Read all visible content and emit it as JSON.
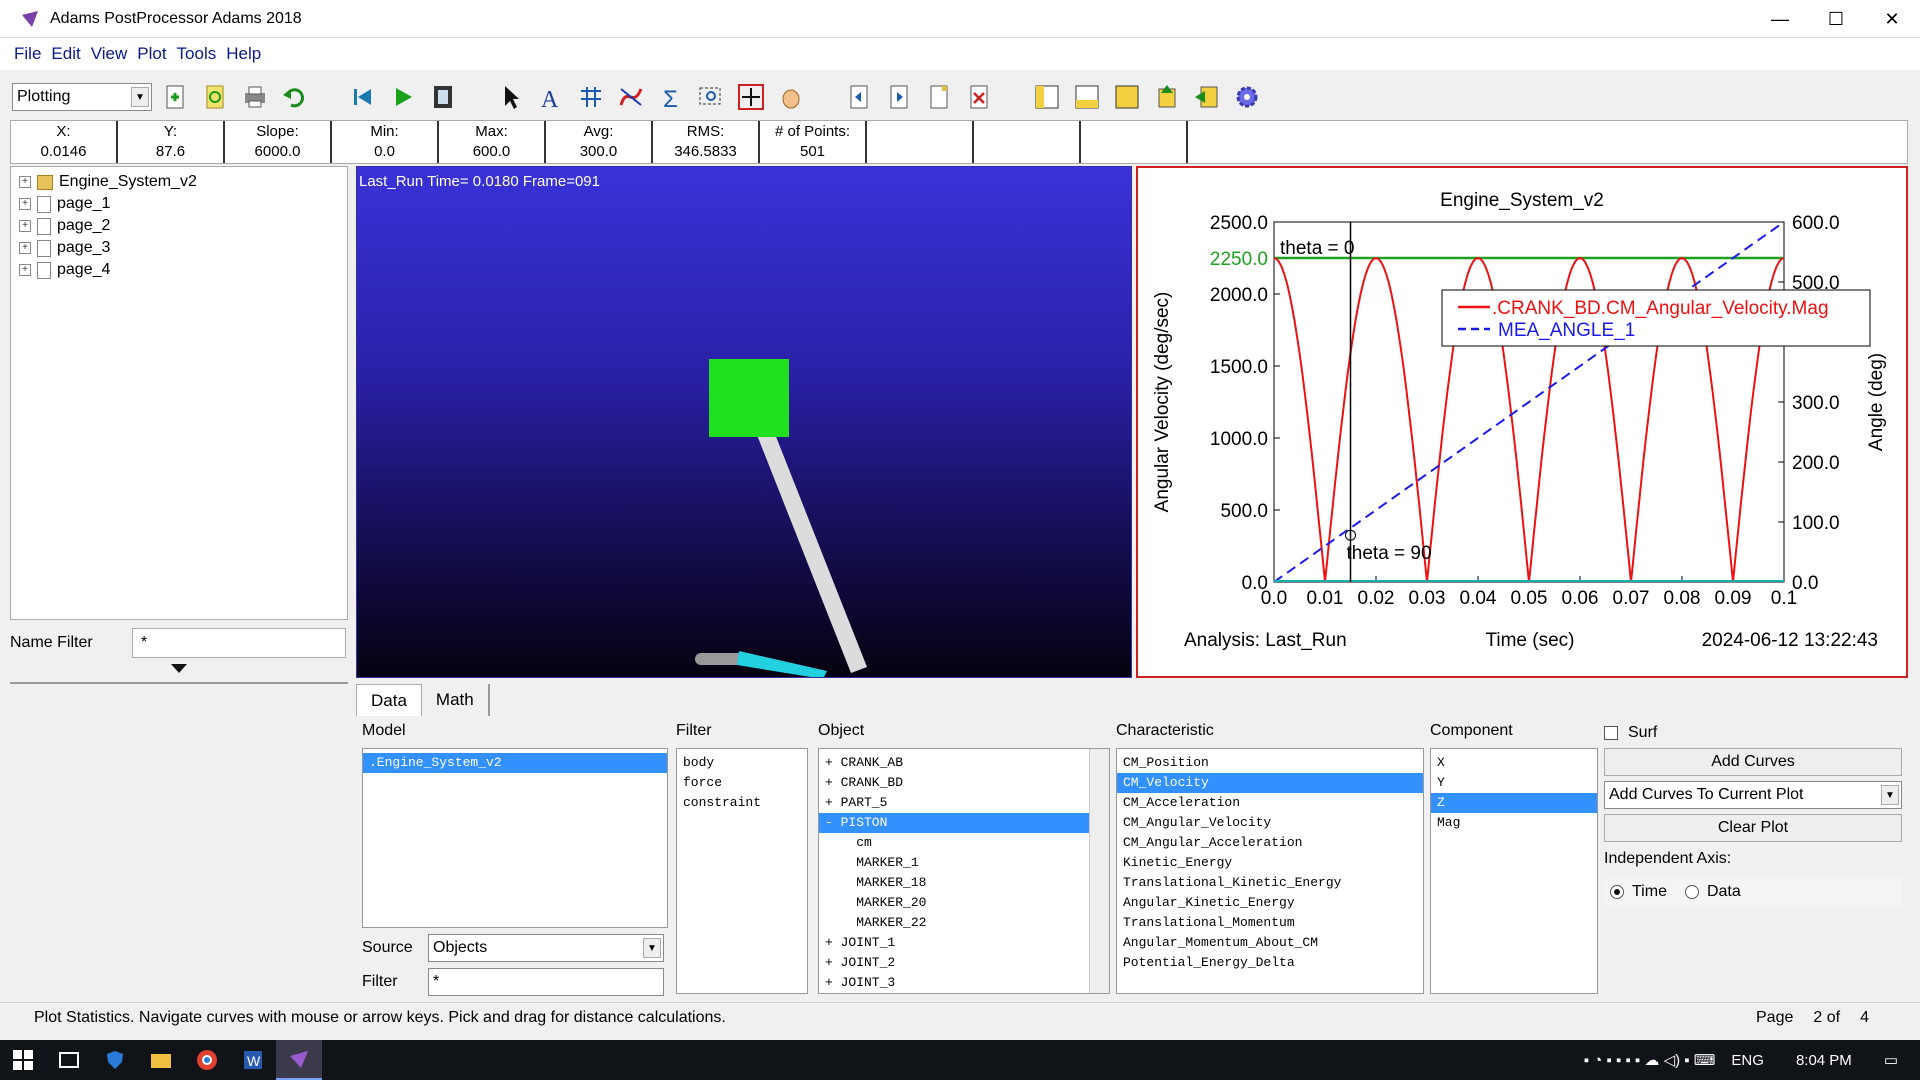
{
  "window": {
    "title": "Adams PostProcessor Adams 2018",
    "minimize": "—",
    "maximize": "☐",
    "close": "✕"
  },
  "menu": [
    "File",
    "Edit",
    "View",
    "Plot",
    "Tools",
    "Help"
  ],
  "toolbar": {
    "mode": "Plotting"
  },
  "stats": [
    {
      "label": "X:",
      "value": "0.0146"
    },
    {
      "label": "Y:",
      "value": "87.6"
    },
    {
      "label": "Slope:",
      "value": "6000.0"
    },
    {
      "label": "Min:",
      "value": "0.0"
    },
    {
      "label": "Max:",
      "value": "600.0"
    },
    {
      "label": "Avg:",
      "value": "300.0"
    },
    {
      "label": "RMS:",
      "value": "346.5833"
    },
    {
      "label": "# of Points:",
      "value": "501"
    }
  ],
  "tree": [
    "Engine_System_v2",
    "page_1",
    "page_2",
    "page_3",
    "page_4"
  ],
  "name_filter": {
    "label": "Name Filter",
    "value": "*"
  },
  "viewport": {
    "info": "Last_Run   Time=  0.0180  Frame=091"
  },
  "plot": {
    "title": "Engine_System_v2",
    "footer_left": "Analysis:  Last_Run",
    "footer_center": "Time (sec)",
    "footer_right": "2024-06-12 13:22:43",
    "annotations": {
      "theta0": "theta = 0",
      "theta90": "theta = 90",
      "hline": "2250.0"
    },
    "colors": {
      "series1": "#ee1111",
      "series2": "#1a1aee",
      "hline": "#20a020"
    }
  },
  "chart_data": {
    "type": "line",
    "title": "Engine_System_v2",
    "xlabel": "Time (sec)",
    "ylabel": "Angular Velocity (deg/sec)",
    "y2label": "Angle (deg)",
    "xlim": [
      0.0,
      0.1
    ],
    "ylim": [
      0.0,
      2500.0
    ],
    "y2lim": [
      0.0,
      600.0
    ],
    "x_ticks": [
      "0.0",
      "0.01",
      "0.02",
      "0.03",
      "0.04",
      "0.05",
      "0.06",
      "0.07",
      "0.08",
      "0.09",
      "0.1"
    ],
    "y_ticks": [
      "0.0",
      "500.0",
      "1000.0",
      "1500.0",
      "2000.0",
      "2500.0"
    ],
    "y2_ticks": [
      "0.0",
      "100.0",
      "200.0",
      "300.0",
      "500.0",
      "600.0"
    ],
    "legend_position": "top-right",
    "series": [
      {
        "name": ".CRANK_BD.CM_Angular_Velocity.Mag",
        "axis": "left",
        "x": [
          0.0,
          0.005,
          0.01,
          0.015,
          0.02,
          0.025,
          0.03,
          0.035,
          0.04,
          0.045,
          0.05,
          0.055,
          0.06,
          0.065,
          0.07,
          0.075,
          0.08,
          0.085,
          0.09,
          0.095,
          0.1
        ],
        "y": [
          2250,
          1591,
          0,
          1591,
          2250,
          1591,
          0,
          1591,
          2250,
          1591,
          0,
          1591,
          2250,
          1591,
          0,
          1591,
          2250,
          1591,
          0,
          1591,
          2250
        ]
      },
      {
        "name": "MEA_ANGLE_1",
        "axis": "right",
        "x": [
          0.0,
          0.1
        ],
        "y": [
          0.0,
          600.0
        ]
      }
    ]
  },
  "tabs": [
    "Data",
    "Math"
  ],
  "columns": {
    "model": {
      "label": "Model",
      "items": [
        ".Engine_System_v2"
      ]
    },
    "filter": {
      "label": "Filter",
      "items": [
        "body",
        "force",
        "constraint"
      ]
    },
    "object": {
      "label": "Object",
      "items": [
        "+ CRANK_AB",
        "+ CRANK_BD",
        "+ PART_5",
        "- PISTON",
        "    cm",
        "    MARKER_1",
        "    MARKER_18",
        "    MARKER_20",
        "    MARKER_22",
        "+ JOINT_1",
        "+ JOINT_2",
        "+ JOINT_3"
      ]
    },
    "characteristic": {
      "label": "Characteristic",
      "items": [
        "CM_Position",
        "CM_Velocity",
        "CM_Acceleration",
        "CM_Angular_Velocity",
        "CM_Angular_Acceleration",
        "Kinetic_Energy",
        "Translational_Kinetic_Energy",
        "Angular_Kinetic_Energy",
        "Translational_Momentum",
        "Angular_Momentum_About_CM",
        "Potential_Energy_Delta"
      ]
    },
    "component": {
      "label": "Component",
      "items": [
        "X",
        "Y",
        "Z",
        "Mag"
      ]
    }
  },
  "source": {
    "label": "Source",
    "value": "Objects"
  },
  "filter_field": {
    "label": "Filter",
    "value": "*"
  },
  "actions": {
    "surf": "Surf",
    "add_curves": "Add Curves",
    "add_mode": "Add Curves To Current Plot",
    "clear_plot": "Clear Plot",
    "indep_axis": "Independent Axis:",
    "time": "Time",
    "data": "Data"
  },
  "status": {
    "message": "Plot Statistics.  Navigate curves with mouse or arrow keys.  Pick and drag for distance calculations.",
    "page_label": "Page",
    "page_value": "2 of",
    "page_total": "4"
  },
  "taskbar": {
    "lang": "ENG",
    "time": "8:04 PM"
  }
}
